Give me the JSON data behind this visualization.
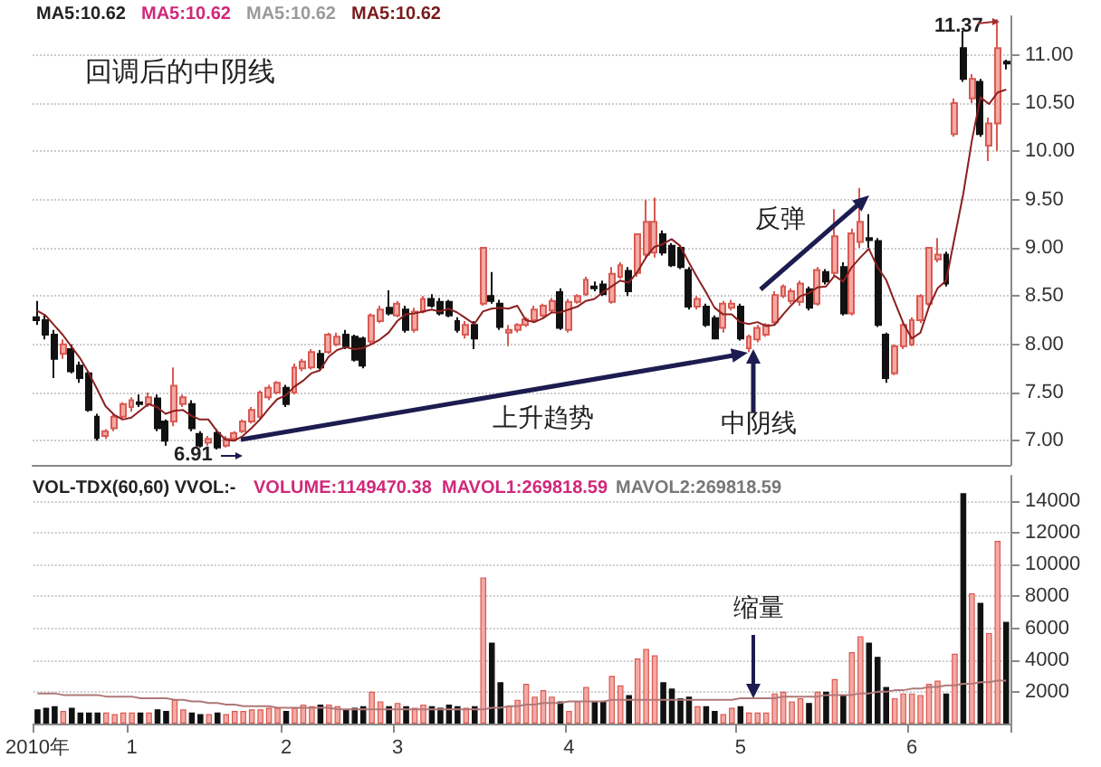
{
  "chart_data": [
    {
      "type": "candlestick",
      "categories": [
        null,
        null,
        null,
        null,
        null,
        null,
        null,
        null,
        null,
        null,
        null,
        null,
        null,
        null,
        null,
        null,
        null,
        null,
        null,
        null,
        null,
        null,
        null,
        null,
        null,
        null,
        null,
        null,
        null,
        null,
        null,
        null,
        null,
        null,
        null,
        null,
        null,
        null,
        null,
        null,
        null,
        null,
        null,
        null,
        null,
        null,
        null,
        null,
        null,
        null,
        null,
        null,
        null,
        null,
        null,
        null,
        null,
        null,
        null,
        null,
        null,
        null,
        null,
        null,
        null,
        null,
        null,
        null,
        null,
        null,
        null,
        null,
        null,
        null,
        null,
        null,
        null,
        null,
        null,
        null,
        null,
        null,
        null,
        null,
        null,
        null,
        null,
        null,
        null,
        null,
        null,
        null,
        null,
        null,
        null,
        null,
        null,
        null,
        null,
        null,
        null,
        null,
        null,
        null,
        null,
        null,
        null,
        null,
        null,
        null,
        null,
        null,
        null,
        null
      ],
      "series": [
        {
          "colors": [
            "#111111",
            "#111111",
            "#111111",
            "#f4a9a3",
            "#111111",
            "#111111",
            "#111111",
            "#111111",
            "#f4a9a3",
            "#f4a9a3",
            "#f4a9a3",
            "#f4a9a3",
            "#111111",
            "#f4a9a3",
            "#111111",
            "#111111",
            "#f4a9a3",
            "#f4a9a3",
            "#111111",
            "#111111",
            "#f4a9a3",
            "#111111",
            "#f4a9a3",
            "#f4a9a3",
            "#f4a9a3",
            "#f4a9a3",
            "#f4a9a3",
            "#f4a9a3",
            "#f4a9a3",
            "#111111",
            "#f4a9a3",
            "#f4a9a3",
            "#f4a9a3",
            "#111111",
            "#f4a9a3",
            "#f4a9a3",
            "#111111",
            "#111111",
            "#111111",
            "#f4a9a3",
            "#f4a9a3",
            "#111111",
            "#f4a9a3",
            "#111111",
            "#f4a9a3",
            "#f4a9a3",
            "#111111",
            "#111111",
            "#111111",
            "#111111",
            "#f4a9a3",
            "#111111",
            "#f4a9a3",
            "#111111",
            "#111111",
            "#f4a9a3",
            "#f4a9a3",
            "#f4a9a3",
            "#f4a9a3",
            "#f4a9a3",
            "#f4a9a3",
            "#111111",
            "#f4a9a3",
            "#f4a9a3",
            "#f4a9a3",
            "#111111",
            "#111111",
            "#f4a9a3",
            "#f4a9a3",
            "#111111",
            "#f4a9a3",
            "#f4a9a3",
            "#f4a9a3",
            "#111111",
            "#111111",
            "#111111",
            "#111111",
            "#f4a9a3",
            "#111111",
            "#111111",
            "#f4a9a3",
            "#f4a9a3",
            "#111111",
            "#f4a9a3",
            "#f4a9a3",
            "#f4a9a3",
            "#f4a9a3",
            "#f4a9a3",
            "#f4a9a3",
            "#f4a9a3",
            "#111111",
            "#f4a9a3",
            "#111111",
            "#f4a9a3",
            "#111111",
            "#f4a9a3",
            "#f4a9a3",
            "#111111",
            "#111111",
            "#111111",
            "#f4a9a3",
            "#f4a9a3",
            "#f4a9a3",
            "#f4a9a3",
            "#f4a9a3",
            "#f4a9a3",
            "#111111",
            "#f4a9a3",
            "#111111",
            "#f4a9a3",
            "#111111",
            "#f4a9a3",
            "#f4a9a3",
            "#111111"
          ],
          "ohlc": [
            [
              8.28,
              8.45,
              8.2,
              8.25
            ],
            [
              8.25,
              8.3,
              8.05,
              8.1
            ],
            [
              8.1,
              8.15,
              7.65,
              7.85
            ],
            [
              7.9,
              8.05,
              7.85,
              8.0
            ],
            [
              7.95,
              8.0,
              7.7,
              7.72
            ],
            [
              7.78,
              7.82,
              7.6,
              7.65
            ],
            [
              7.7,
              7.72,
              7.3,
              7.32
            ],
            [
              7.25,
              7.28,
              7.0,
              7.03
            ],
            [
              7.05,
              7.12,
              7.02,
              7.1
            ],
            [
              7.13,
              7.28,
              7.1,
              7.25
            ],
            [
              7.25,
              7.4,
              7.22,
              7.38
            ],
            [
              7.35,
              7.45,
              7.3,
              7.42
            ],
            [
              7.4,
              7.48,
              7.35,
              7.38
            ],
            [
              7.38,
              7.5,
              7.35,
              7.45
            ],
            [
              7.44,
              7.48,
              7.1,
              7.13
            ],
            [
              7.2,
              7.22,
              6.95,
              7.0
            ],
            [
              7.2,
              7.76,
              7.15,
              7.57
            ],
            [
              7.38,
              7.48,
              7.35,
              7.45
            ],
            [
              7.38,
              7.42,
              7.1,
              7.13
            ],
            [
              7.07,
              7.1,
              6.93,
              6.95
            ],
            [
              6.98,
              7.05,
              6.95,
              7.02
            ],
            [
              7.08,
              7.12,
              6.91,
              6.93
            ],
            [
              6.95,
              7.05,
              6.93,
              7.02
            ],
            [
              7.02,
              7.1,
              7.0,
              7.08
            ],
            [
              7.1,
              7.22,
              7.08,
              7.2
            ],
            [
              7.2,
              7.35,
              7.18,
              7.32
            ],
            [
              7.25,
              7.52,
              7.22,
              7.5
            ],
            [
              7.45,
              7.58,
              7.42,
              7.55
            ],
            [
              7.5,
              7.62,
              7.48,
              7.6
            ],
            [
              7.55,
              7.58,
              7.35,
              7.38
            ],
            [
              7.5,
              7.8,
              7.48,
              7.76
            ],
            [
              7.75,
              7.85,
              7.72,
              7.82
            ],
            [
              7.76,
              7.95,
              7.74,
              7.92
            ],
            [
              7.9,
              7.94,
              7.74,
              7.76
            ],
            [
              7.92,
              8.12,
              7.9,
              8.1
            ],
            [
              8.0,
              8.12,
              7.98,
              8.08
            ],
            [
              8.1,
              8.15,
              7.95,
              7.98
            ],
            [
              8.08,
              8.1,
              7.82,
              7.84
            ],
            [
              8.06,
              8.08,
              7.75,
              7.78
            ],
            [
              8.03,
              8.32,
              8.0,
              8.3
            ],
            [
              8.24,
              8.4,
              8.22,
              8.36
            ],
            [
              8.38,
              8.56,
              8.3,
              8.32
            ],
            [
              8.3,
              8.45,
              8.28,
              8.42
            ],
            [
              8.36,
              8.4,
              8.12,
              8.15
            ],
            [
              8.15,
              8.38,
              8.12,
              8.34
            ],
            [
              8.34,
              8.5,
              8.32,
              8.47
            ],
            [
              8.47,
              8.52,
              8.38,
              8.4
            ],
            [
              8.44,
              8.48,
              8.3,
              8.32
            ],
            [
              8.44,
              8.46,
              8.28,
              8.3
            ],
            [
              8.24,
              8.28,
              8.12,
              8.15
            ],
            [
              8.1,
              8.24,
              8.06,
              8.2
            ],
            [
              8.2,
              8.24,
              7.95,
              8.06
            ],
            [
              8.42,
              9.0,
              8.4,
              9.0
            ],
            [
              8.5,
              8.75,
              8.42,
              8.45
            ],
            [
              8.42,
              8.46,
              8.15,
              8.18
            ],
            [
              8.12,
              8.2,
              7.98,
              8.15
            ],
            [
              8.15,
              8.22,
              8.12,
              8.2
            ],
            [
              8.2,
              8.28,
              8.18,
              8.26
            ],
            [
              8.25,
              8.4,
              8.22,
              8.36
            ],
            [
              8.3,
              8.42,
              8.28,
              8.4
            ],
            [
              8.35,
              8.48,
              8.32,
              8.45
            ],
            [
              8.54,
              8.58,
              8.15,
              8.17
            ],
            [
              8.15,
              8.47,
              8.12,
              8.44
            ],
            [
              8.44,
              8.52,
              8.42,
              8.5
            ],
            [
              8.52,
              8.7,
              8.5,
              8.67
            ],
            [
              8.6,
              8.65,
              8.55,
              8.58
            ],
            [
              8.62,
              8.66,
              8.5,
              8.52
            ],
            [
              8.44,
              8.8,
              8.42,
              8.73
            ],
            [
              8.7,
              8.85,
              8.68,
              8.82
            ],
            [
              8.76,
              8.8,
              8.5,
              8.55
            ],
            [
              8.74,
              9.15,
              8.7,
              9.14
            ],
            [
              8.93,
              9.5,
              8.9,
              9.27
            ],
            [
              8.95,
              9.52,
              8.9,
              9.27
            ],
            [
              9.14,
              9.18,
              8.92,
              8.95
            ],
            [
              9.02,
              9.05,
              8.8,
              8.82
            ],
            [
              9.0,
              9.02,
              8.78,
              8.8
            ],
            [
              8.77,
              8.8,
              8.36,
              8.39
            ],
            [
              8.39,
              8.5,
              8.36,
              8.47
            ],
            [
              8.39,
              8.42,
              8.18,
              8.2
            ],
            [
              8.27,
              8.3,
              8.05,
              8.06
            ],
            [
              8.17,
              8.45,
              8.12,
              8.42
            ],
            [
              8.38,
              8.46,
              8.35,
              8.42
            ],
            [
              8.39,
              8.42,
              8.04,
              8.06
            ],
            [
              7.96,
              8.1,
              7.92,
              8.08
            ],
            [
              8.05,
              8.2,
              8.02,
              8.17
            ],
            [
              8.1,
              8.22,
              8.08,
              8.2
            ],
            [
              8.23,
              8.55,
              8.2,
              8.51
            ],
            [
              8.5,
              8.62,
              8.48,
              8.6
            ],
            [
              8.45,
              8.58,
              8.42,
              8.55
            ],
            [
              8.44,
              8.66,
              8.4,
              8.63
            ],
            [
              8.57,
              8.6,
              8.35,
              8.38
            ],
            [
              8.42,
              8.8,
              8.4,
              8.77
            ],
            [
              8.75,
              8.78,
              8.62,
              8.65
            ],
            [
              8.74,
              9.4,
              8.7,
              9.12
            ],
            [
              8.8,
              8.85,
              8.3,
              8.32
            ],
            [
              8.32,
              9.2,
              8.3,
              9.15
            ],
            [
              9.06,
              9.62,
              9.0,
              9.27
            ],
            [
              9.1,
              9.35,
              9.0,
              9.08
            ],
            [
              9.07,
              9.1,
              8.18,
              8.2
            ],
            [
              8.1,
              8.12,
              7.6,
              7.65
            ],
            [
              7.7,
              8.0,
              7.68,
              7.98
            ],
            [
              7.98,
              8.22,
              7.95,
              8.2
            ],
            [
              8.0,
              8.28,
              7.98,
              8.25
            ],
            [
              8.25,
              8.52,
              8.22,
              8.5
            ],
            [
              8.42,
              9.0,
              8.4,
              9.0
            ],
            [
              8.88,
              9.1,
              8.85,
              8.93
            ],
            [
              8.93,
              8.96,
              8.6,
              8.63
            ],
            [
              10.18,
              10.55,
              10.15,
              10.5
            ],
            [
              11.07,
              11.25,
              10.72,
              10.75
            ],
            [
              10.55,
              10.8,
              10.5,
              10.75
            ],
            [
              10.72,
              10.75,
              10.15,
              10.18
            ],
            [
              10.06,
              10.35,
              9.9,
              10.29
            ],
            [
              10.29,
              11.37,
              10.0,
              11.07
            ],
            [
              10.93,
              10.95,
              10.85,
              10.91
            ]
          ]
        },
        {
          "type": "line",
          "color": "#8b2020",
          "values": [
            8.35,
            8.3,
            8.2,
            8.1,
            7.98,
            7.86,
            7.71,
            7.54,
            7.36,
            7.27,
            7.22,
            7.24,
            7.31,
            7.38,
            7.35,
            7.28,
            7.31,
            7.32,
            7.26,
            7.22,
            7.22,
            7.1,
            7.01,
            7.0,
            7.05,
            7.13,
            7.22,
            7.33,
            7.43,
            7.47,
            7.56,
            7.62,
            7.7,
            7.73,
            7.87,
            7.94,
            7.97,
            7.95,
            7.96,
            8.0,
            8.05,
            8.12,
            8.24,
            8.31,
            8.32,
            8.34,
            8.36,
            8.34,
            8.37,
            8.33,
            8.27,
            8.21,
            8.34,
            8.37,
            8.38,
            8.37,
            8.4,
            8.25,
            8.23,
            8.27,
            8.33,
            8.33,
            8.36,
            8.39,
            8.45,
            8.47,
            8.54,
            8.6,
            8.66,
            8.64,
            8.75,
            8.9,
            9.01,
            9.04,
            9.09,
            9.02,
            8.85,
            8.69,
            8.54,
            8.38,
            8.31,
            8.31,
            8.23,
            8.21,
            8.23,
            8.19,
            8.2,
            8.31,
            8.41,
            8.5,
            8.53,
            8.59,
            8.6,
            8.71,
            8.65,
            8.8,
            8.9,
            8.99,
            8.8,
            8.67,
            8.44,
            8.22,
            8.06,
            8.12,
            8.39,
            8.58,
            8.66,
            9.11,
            9.56,
            10.11,
            10.56,
            10.49,
            10.61,
            10.64
          ]
        }
      ],
      "ylim": [
        6.75,
        11.4
      ],
      "yticks": [
        {
          "value": 7,
          "label": "7.00"
        },
        {
          "value": 7.5,
          "label": "7.50"
        },
        {
          "value": 8,
          "label": "8.00"
        },
        {
          "value": 8.5,
          "label": "8.50"
        },
        {
          "value": 9,
          "label": "9.00"
        },
        {
          "value": 9.5,
          "label": "9.50"
        },
        {
          "value": 10,
          "label": "10.00"
        },
        {
          "value": 10.5,
          "label": "10.50"
        },
        {
          "value": 11,
          "label": "11.00"
        }
      ],
      "grid": "y",
      "tick_labels": "y",
      "marker": "none",
      "annotations": [
        "MA5:10.62",
        "MA5:10.62",
        "MA5:10.62",
        "MA5:10.62",
        "回调后的中阴线",
        "6.91",
        "11.37",
        "上升趋势",
        "中阴线",
        "反弹"
      ]
    },
    {
      "type": "bar",
      "categories": [
        "2010年",
        null,
        null,
        null,
        null,
        null,
        null,
        null,
        null,
        null,
        null,
        "1",
        null,
        null,
        null,
        null,
        null,
        null,
        null,
        null,
        null,
        null,
        null,
        null,
        null,
        null,
        null,
        null,
        null,
        "2",
        null,
        null,
        null,
        null,
        null,
        null,
        null,
        null,
        null,
        null,
        null,
        null,
        "3",
        null,
        null,
        null,
        null,
        null,
        null,
        null,
        null,
        null,
        null,
        null,
        null,
        null,
        null,
        null,
        null,
        null,
        null,
        null,
        "4",
        null,
        null,
        null,
        null,
        null,
        null,
        null,
        null,
        null,
        null,
        null,
        null,
        null,
        null,
        null,
        null,
        null,
        null,
        null,
        "5",
        null,
        null,
        null,
        null,
        null,
        null,
        null,
        null,
        null,
        null,
        null,
        null,
        null,
        null,
        null,
        null,
        null,
        null,
        null,
        "6",
        null,
        null,
        null,
        null,
        null,
        null,
        null,
        null,
        null,
        null,
        null
      ],
      "series": [
        {
          "values": [
            900,
            1000,
            1100,
            800,
            1000,
            700,
            700,
            700,
            700,
            600,
            700,
            700,
            700,
            700,
            900,
            800,
            1500,
            900,
            700,
            600,
            600,
            700,
            600,
            800,
            800,
            900,
            900,
            1000,
            1000,
            800,
            1000,
            1200,
            1100,
            1200,
            1200,
            1100,
            900,
            1000,
            1100,
            2000,
            1400,
            1100,
            1300,
            1100,
            1000,
            1200,
            1100,
            1000,
            1200,
            1100,
            1000,
            1100,
            9200,
            5100,
            2600,
            1100,
            1500,
            2500,
            1700,
            2100,
            1700,
            1400,
            800,
            1400,
            2300,
            1400,
            1400,
            3000,
            2400,
            1800,
            4100,
            4700,
            4300,
            2600,
            2200,
            1600,
            1700,
            1100,
            1100,
            800,
            600,
            1000,
            1100,
            700,
            700,
            700,
            1900,
            2000,
            1400,
            1600,
            1300,
            2000,
            2000,
            2800,
            1800,
            4500,
            5500,
            5100,
            4200,
            2300,
            1600,
            1900,
            1900,
            1800,
            2500,
            2700,
            1900,
            4400,
            14500,
            8200,
            7600,
            5700,
            11500,
            6400
          ],
          "colors": [
            "#111111",
            "#111111",
            "#111111",
            "#f4a9a3",
            "#111111",
            "#111111",
            "#111111",
            "#111111",
            "#f4a9a3",
            "#f4a9a3",
            "#f4a9a3",
            "#f4a9a3",
            "#111111",
            "#f4a9a3",
            "#111111",
            "#111111",
            "#f4a9a3",
            "#f4a9a3",
            "#111111",
            "#111111",
            "#f4a9a3",
            "#111111",
            "#f4a9a3",
            "#f4a9a3",
            "#f4a9a3",
            "#f4a9a3",
            "#f4a9a3",
            "#f4a9a3",
            "#f4a9a3",
            "#111111",
            "#f4a9a3",
            "#f4a9a3",
            "#f4a9a3",
            "#111111",
            "#f4a9a3",
            "#f4a9a3",
            "#111111",
            "#111111",
            "#111111",
            "#f4a9a3",
            "#f4a9a3",
            "#111111",
            "#f4a9a3",
            "#111111",
            "#f4a9a3",
            "#f4a9a3",
            "#111111",
            "#111111",
            "#111111",
            "#111111",
            "#f4a9a3",
            "#111111",
            "#f4a9a3",
            "#111111",
            "#111111",
            "#f4a9a3",
            "#f4a9a3",
            "#f4a9a3",
            "#f4a9a3",
            "#f4a9a3",
            "#f4a9a3",
            "#111111",
            "#f4a9a3",
            "#f4a9a3",
            "#f4a9a3",
            "#111111",
            "#111111",
            "#f4a9a3",
            "#f4a9a3",
            "#111111",
            "#f4a9a3",
            "#f4a9a3",
            "#f4a9a3",
            "#111111",
            "#111111",
            "#111111",
            "#111111",
            "#f4a9a3",
            "#111111",
            "#111111",
            "#f4a9a3",
            "#f4a9a3",
            "#111111",
            "#f4a9a3",
            "#f4a9a3",
            "#f4a9a3",
            "#f4a9a3",
            "#f4a9a3",
            "#f4a9a3",
            "#f4a9a3",
            "#111111",
            "#f4a9a3",
            "#111111",
            "#f4a9a3",
            "#111111",
            "#f4a9a3",
            "#f4a9a3",
            "#111111",
            "#111111",
            "#111111",
            "#f4a9a3",
            "#f4a9a3",
            "#f4a9a3",
            "#f4a9a3",
            "#f4a9a3",
            "#f4a9a3",
            "#111111",
            "#f4a9a3",
            "#111111",
            "#f4a9a3",
            "#111111",
            "#f4a9a3",
            "#f4a9a3",
            "#111111"
          ]
        },
        {
          "type": "line",
          "color": "#b07878",
          "values": [
            1900,
            1900,
            1900,
            1800,
            1800,
            1800,
            1800,
            1800,
            1700,
            1700,
            1700,
            1700,
            1600,
            1600,
            1600,
            1600,
            1500,
            1500,
            1400,
            1400,
            1300,
            1300,
            1200,
            1200,
            1100,
            1100,
            1100,
            1100,
            1000,
            1000,
            1000,
            1000,
            1000,
            1000,
            1000,
            900,
            900,
            900,
            900,
            900,
            900,
            900,
            900,
            900,
            900,
            900,
            900,
            900,
            900,
            900,
            900,
            900,
            900,
            1000,
            1000,
            1100,
            1100,
            1200,
            1200,
            1300,
            1300,
            1300,
            1400,
            1400,
            1400,
            1400,
            1400,
            1500,
            1500,
            1500,
            1500,
            1500,
            1500,
            1500,
            1500,
            1500,
            1500,
            1500,
            1500,
            1500,
            1500,
            1500,
            1600,
            1600,
            1600,
            1600,
            1600,
            1700,
            1700,
            1700,
            1700,
            1700,
            1800,
            1800,
            1800,
            1800,
            1900,
            1900,
            2000,
            2000,
            2100,
            2100,
            2200,
            2200,
            2300,
            2300,
            2400,
            2400,
            2500,
            2500,
            2600,
            2600,
            2700,
            2700
          ]
        }
      ],
      "ylim": [
        0,
        15600
      ],
      "yticks": [
        2000,
        4000,
        6000,
        8000,
        10000,
        12000,
        14000
      ],
      "grid": "y",
      "marker": "none",
      "annotations": [
        "VOL-TDX(60,60) VVOL:-",
        "VOLUME:1149470.38",
        "MAVOL1:269818.59",
        "MAVOL2:269818.59",
        "缩量"
      ]
    }
  ]
}
